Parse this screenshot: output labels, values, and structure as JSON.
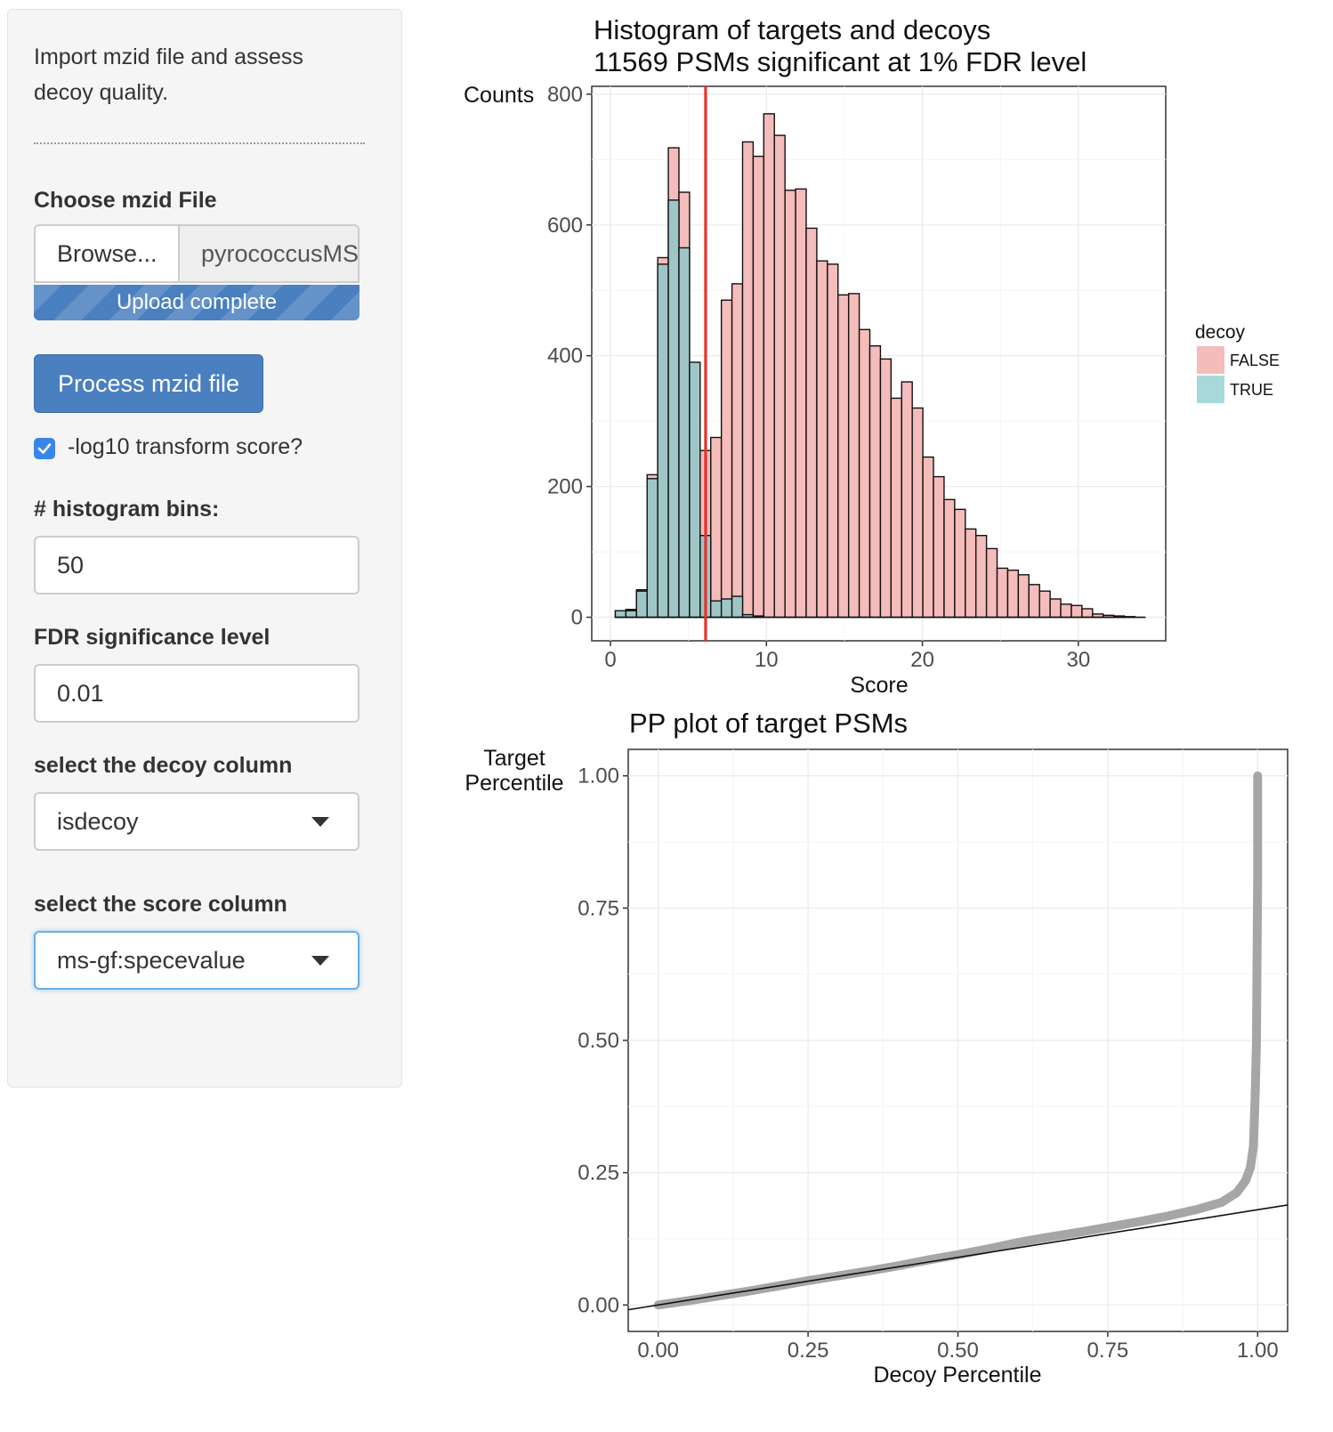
{
  "sidebar": {
    "intro_line1": "Import mzid file and assess",
    "intro_line2": "decoy quality.",
    "file_label": "Choose mzid File",
    "browse_label": "Browse...",
    "file_name": "pyrococcusMSGF.mzid",
    "upload_status": "Upload complete",
    "process_button": "Process mzid file",
    "log_checkbox_label": "-log10 transform score?",
    "log_checkbox_checked": true,
    "bins_label": "# histogram bins:",
    "bins_value": "50",
    "fdr_label": "FDR significance level",
    "fdr_value": "0.01",
    "decoy_col_label": "select the decoy column",
    "decoy_col_value": "isdecoy",
    "score_col_label": "select the score column",
    "score_col_value": "ms-gf:specevalue"
  },
  "chart_data": [
    {
      "type": "bar",
      "title": "Histogram of targets and decoys",
      "subtitle": "11569 PSMs significant at 1% FDR level",
      "xlabel": "Score",
      "ylabel": "Counts",
      "xlim": [
        -1.2,
        35.6
      ],
      "ylim": [
        -36,
        812
      ],
      "xticks": [
        0,
        10,
        20,
        30
      ],
      "yticks": [
        0,
        200,
        400,
        600,
        800
      ],
      "grid": true,
      "legend": {
        "title": "decoy",
        "placement": "right",
        "entries": [
          "FALSE",
          "TRUE"
        ]
      },
      "threshold_x": 6.1,
      "threshold_color": "#e8302a",
      "colors": {
        "FALSE": "#f4bcba",
        "TRUE": "#9fc6c6"
      },
      "bin_edges": [
        0.31,
        0.99,
        1.67,
        2.35,
        3.03,
        3.71,
        4.39,
        5.07,
        5.75,
        6.43,
        7.11,
        7.79,
        8.47,
        9.15,
        9.83,
        10.51,
        11.19,
        11.87,
        12.55,
        13.23,
        13.91,
        14.59,
        15.27,
        15.95,
        16.63,
        17.31,
        17.99,
        18.67,
        19.35,
        20.03,
        20.71,
        21.39,
        22.07,
        22.75,
        23.43,
        24.11,
        24.79,
        25.47,
        26.15,
        26.83,
        27.51,
        28.19,
        28.87,
        29.55,
        30.23,
        30.91,
        31.59,
        32.27,
        32.95,
        33.63,
        34.31
      ],
      "series": [
        {
          "name": "FALSE",
          "values": [
            10,
            12,
            42,
            218,
            550,
            718,
            650,
            262,
            255,
            275,
            485,
            510,
            727,
            705,
            770,
            737,
            653,
            655,
            595,
            545,
            540,
            493,
            495,
            440,
            415,
            395,
            335,
            360,
            320,
            245,
            215,
            180,
            165,
            135,
            125,
            105,
            75,
            72,
            65,
            50,
            40,
            28,
            20,
            18,
            13,
            5,
            3,
            2,
            1,
            0
          ]
        },
        {
          "name": "TRUE",
          "values": [
            10,
            10,
            40,
            212,
            540,
            638,
            565,
            390,
            125,
            25,
            28,
            32,
            4,
            2,
            0,
            0,
            0,
            0,
            0,
            0,
            0,
            0,
            0,
            0,
            0,
            0,
            0,
            0,
            0,
            0,
            0,
            0,
            0,
            0,
            0,
            0,
            0,
            0,
            0,
            0,
            0,
            0,
            0,
            0,
            0,
            0,
            0,
            0,
            0,
            0
          ]
        }
      ]
    },
    {
      "type": "scatter",
      "title": "PP plot of target PSMs",
      "xlabel": "Decoy Percentile",
      "ylabel_line1": "Target",
      "ylabel_line2": "Percentile",
      "xlim": [
        -0.05,
        1.05
      ],
      "ylim": [
        -0.05,
        1.05
      ],
      "xticks": [
        "0.00",
        "0.25",
        "0.50",
        "0.75",
        "1.00"
      ],
      "yticks": [
        "0.00",
        "0.25",
        "0.50",
        "0.75",
        "1.00"
      ],
      "grid": true,
      "point_color": "#a6a6a6",
      "reference_line": {
        "intercept": 0.0,
        "slope": 0.18
      },
      "curve": [
        [
          0.0,
          0.0
        ],
        [
          0.05,
          0.008
        ],
        [
          0.1,
          0.017
        ],
        [
          0.15,
          0.026
        ],
        [
          0.2,
          0.036
        ],
        [
          0.25,
          0.046
        ],
        [
          0.3,
          0.055
        ],
        [
          0.35,
          0.064
        ],
        [
          0.4,
          0.074
        ],
        [
          0.45,
          0.085
        ],
        [
          0.5,
          0.095
        ],
        [
          0.55,
          0.106
        ],
        [
          0.6,
          0.118
        ],
        [
          0.65,
          0.128
        ],
        [
          0.7,
          0.137
        ],
        [
          0.75,
          0.147
        ],
        [
          0.8,
          0.157
        ],
        [
          0.85,
          0.168
        ],
        [
          0.9,
          0.181
        ],
        [
          0.94,
          0.194
        ],
        [
          0.965,
          0.212
        ],
        [
          0.98,
          0.235
        ],
        [
          0.988,
          0.26
        ],
        [
          0.993,
          0.3
        ],
        [
          0.996,
          0.4
        ],
        [
          0.998,
          0.5
        ],
        [
          0.999,
          0.65
        ],
        [
          1.0,
          0.8
        ],
        [
          1.0,
          1.0
        ]
      ]
    }
  ]
}
